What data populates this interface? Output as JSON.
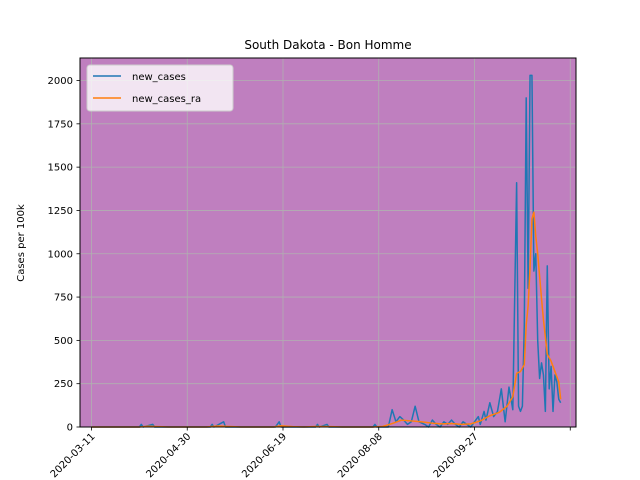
{
  "chart_data": {
    "type": "line",
    "title": "South Dakota - Bon Homme",
    "xlabel": "",
    "ylabel": "Cases per 100k",
    "ylim": [
      0,
      2130
    ],
    "xlim": [
      "2020-03-05",
      "2020-11-19"
    ],
    "background_color": "#bf7fbf",
    "grid": true,
    "legend_position": "top-left",
    "x_tick_labels": [
      "2020-03-11",
      "2020-04-30",
      "2020-06-19",
      "2020-08-08",
      "2020-09-27"
    ],
    "y_tick_labels": [
      "0",
      "250",
      "500",
      "750",
      "1000",
      "1250",
      "1500",
      "1750",
      "2000"
    ],
    "y_tick_values": [
      0,
      250,
      500,
      750,
      1000,
      1250,
      1500,
      1750,
      2000
    ],
    "series": [
      {
        "name": "new_cases",
        "color": "#1f77b4",
        "points": [
          [
            "2020-03-11",
            0
          ],
          [
            "2020-04-05",
            0
          ],
          [
            "2020-04-06",
            15
          ],
          [
            "2020-04-07",
            0
          ],
          [
            "2020-04-12",
            15
          ],
          [
            "2020-04-13",
            0
          ],
          [
            "2020-05-12",
            0
          ],
          [
            "2020-05-13",
            15
          ],
          [
            "2020-05-14",
            0
          ],
          [
            "2020-05-19",
            30
          ],
          [
            "2020-05-20",
            0
          ],
          [
            "2020-06-15",
            0
          ],
          [
            "2020-06-16",
            15
          ],
          [
            "2020-06-17",
            30
          ],
          [
            "2020-06-18",
            0
          ],
          [
            "2020-07-06",
            0
          ],
          [
            "2020-07-07",
            15
          ],
          [
            "2020-07-08",
            0
          ],
          [
            "2020-07-12",
            15
          ],
          [
            "2020-07-13",
            0
          ],
          [
            "2020-08-05",
            0
          ],
          [
            "2020-08-06",
            15
          ],
          [
            "2020-08-07",
            0
          ],
          [
            "2020-08-13",
            0
          ],
          [
            "2020-08-15",
            100
          ],
          [
            "2020-08-17",
            30
          ],
          [
            "2020-08-19",
            60
          ],
          [
            "2020-08-21",
            40
          ],
          [
            "2020-08-23",
            15
          ],
          [
            "2020-08-25",
            30
          ],
          [
            "2020-08-27",
            120
          ],
          [
            "2020-08-29",
            30
          ],
          [
            "2020-09-01",
            15
          ],
          [
            "2020-09-03",
            0
          ],
          [
            "2020-09-05",
            40
          ],
          [
            "2020-09-07",
            15
          ],
          [
            "2020-09-09",
            0
          ],
          [
            "2020-09-11",
            30
          ],
          [
            "2020-09-13",
            15
          ],
          [
            "2020-09-15",
            40
          ],
          [
            "2020-09-17",
            15
          ],
          [
            "2020-09-19",
            0
          ],
          [
            "2020-09-21",
            30
          ],
          [
            "2020-09-23",
            15
          ],
          [
            "2020-09-25",
            0
          ],
          [
            "2020-09-27",
            30
          ],
          [
            "2020-09-29",
            60
          ],
          [
            "2020-09-30",
            15
          ],
          [
            "2020-10-02",
            90
          ],
          [
            "2020-10-03",
            40
          ],
          [
            "2020-10-05",
            140
          ],
          [
            "2020-10-07",
            60
          ],
          [
            "2020-10-09",
            90
          ],
          [
            "2020-10-11",
            220
          ],
          [
            "2020-10-13",
            30
          ],
          [
            "2020-10-15",
            230
          ],
          [
            "2020-10-17",
            100
          ],
          [
            "2020-10-19",
            1410
          ],
          [
            "2020-10-20",
            120
          ],
          [
            "2020-10-21",
            90
          ],
          [
            "2020-10-22",
            120
          ],
          [
            "2020-10-23",
            590
          ],
          [
            "2020-10-24",
            1900
          ],
          [
            "2020-10-25",
            800
          ],
          [
            "2020-10-26",
            2030
          ],
          [
            "2020-10-27",
            2030
          ],
          [
            "2020-10-28",
            900
          ],
          [
            "2020-10-29",
            1000
          ],
          [
            "2020-10-30",
            500
          ],
          [
            "2020-10-31",
            280
          ],
          [
            "2020-11-01",
            370
          ],
          [
            "2020-11-02",
            300
          ],
          [
            "2020-11-03",
            90
          ],
          [
            "2020-11-04",
            930
          ],
          [
            "2020-11-05",
            220
          ],
          [
            "2020-11-06",
            350
          ],
          [
            "2020-11-07",
            90
          ],
          [
            "2020-11-08",
            300
          ],
          [
            "2020-11-09",
            260
          ],
          [
            "2020-11-10",
            160
          ],
          [
            "2020-11-11",
            140
          ]
        ]
      },
      {
        "name": "new_cases_ra",
        "color": "#ff7f0e",
        "points": [
          [
            "2020-03-11",
            0
          ],
          [
            "2020-04-05",
            0
          ],
          [
            "2020-04-09",
            4
          ],
          [
            "2020-04-15",
            2
          ],
          [
            "2020-04-20",
            0
          ],
          [
            "2020-05-10",
            0
          ],
          [
            "2020-05-16",
            6
          ],
          [
            "2020-05-22",
            3
          ],
          [
            "2020-05-28",
            0
          ],
          [
            "2020-06-14",
            0
          ],
          [
            "2020-06-18",
            7
          ],
          [
            "2020-06-24",
            2
          ],
          [
            "2020-06-30",
            0
          ],
          [
            "2020-07-06",
            3
          ],
          [
            "2020-07-14",
            2
          ],
          [
            "2020-07-20",
            0
          ],
          [
            "2020-08-05",
            0
          ],
          [
            "2020-08-10",
            3
          ],
          [
            "2020-08-15",
            20
          ],
          [
            "2020-08-20",
            40
          ],
          [
            "2020-08-25",
            35
          ],
          [
            "2020-08-30",
            30
          ],
          [
            "2020-09-05",
            22
          ],
          [
            "2020-09-10",
            18
          ],
          [
            "2020-09-15",
            20
          ],
          [
            "2020-09-20",
            15
          ],
          [
            "2020-09-25",
            18
          ],
          [
            "2020-09-30",
            35
          ],
          [
            "2020-10-05",
            65
          ],
          [
            "2020-10-10",
            85
          ],
          [
            "2020-10-14",
            120
          ],
          [
            "2020-10-17",
            175
          ],
          [
            "2020-10-19",
            310
          ],
          [
            "2020-10-21",
            320
          ],
          [
            "2020-10-23",
            360
          ],
          [
            "2020-10-24",
            590
          ],
          [
            "2020-10-25",
            700
          ],
          [
            "2020-10-26",
            920
          ],
          [
            "2020-10-27",
            1200
          ],
          [
            "2020-10-28",
            1240
          ],
          [
            "2020-10-29",
            1100
          ],
          [
            "2020-10-30",
            1000
          ],
          [
            "2020-11-01",
            740
          ],
          [
            "2020-11-02",
            620
          ],
          [
            "2020-11-04",
            420
          ],
          [
            "2020-11-06",
            380
          ],
          [
            "2020-11-08",
            320
          ],
          [
            "2020-11-10",
            260
          ],
          [
            "2020-11-11",
            160
          ]
        ]
      }
    ]
  }
}
